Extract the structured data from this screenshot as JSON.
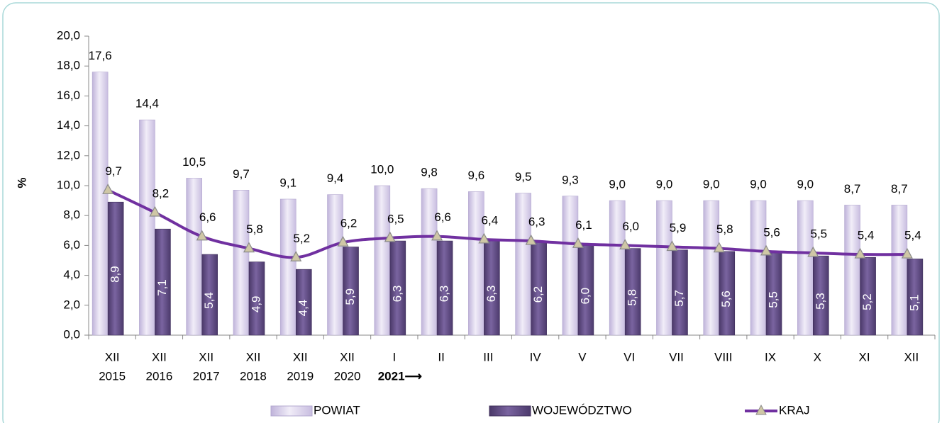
{
  "chart_data": {
    "type": "bar-line",
    "y_label": "%",
    "categories": [
      "XII",
      "XII",
      "XII",
      "XII",
      "XII",
      "XII",
      "I",
      "II",
      "III",
      "IV",
      "V",
      "VI",
      "VII",
      "VIII",
      "IX",
      "X",
      "XI",
      "XII"
    ],
    "category_years": [
      "2015",
      "2016",
      "2017",
      "2018",
      "2019",
      "2020",
      "2021⟶",
      null,
      null,
      null,
      null,
      null,
      null,
      null,
      null,
      null,
      null,
      null
    ],
    "ylim": [
      0,
      20
    ],
    "yticks": [
      {
        "value": 0,
        "label": "0,0"
      },
      {
        "value": 2,
        "label": "2,0"
      },
      {
        "value": 4,
        "label": "4,0"
      },
      {
        "value": 6,
        "label": "6,0"
      },
      {
        "value": 8,
        "label": "8,0"
      },
      {
        "value": 10,
        "label": "10,0"
      },
      {
        "value": 12,
        "label": "12,0"
      },
      {
        "value": 14,
        "label": "14,0"
      },
      {
        "value": 16,
        "label": "16,0"
      },
      {
        "value": 18,
        "label": "18,0"
      },
      {
        "value": 20,
        "label": "20,0"
      }
    ],
    "series": [
      {
        "name": "POWIAT",
        "type": "bar",
        "color": "#d9d2ea",
        "values": [
          17.6,
          14.4,
          10.5,
          9.7,
          9.1,
          9.4,
          10.0,
          9.8,
          9.6,
          9.5,
          9.3,
          9.0,
          9.0,
          9.0,
          9.0,
          9.0,
          8.7,
          8.7
        ],
        "value_labels": [
          "17,6",
          "14,4",
          "10,5",
          "9,7",
          "9,1",
          "9,4",
          "10,0",
          "9,8",
          "9,6",
          "9,5",
          "9,3",
          "9,0",
          "9,0",
          "9,0",
          "9,0",
          "9,0",
          "8,7",
          "8,7"
        ]
      },
      {
        "name": "WOJEWÓDZTWO",
        "type": "bar",
        "color": "#5f4a82",
        "values": [
          8.9,
          7.1,
          5.4,
          4.9,
          4.4,
          5.9,
          6.3,
          6.3,
          6.3,
          6.2,
          6.0,
          5.8,
          5.7,
          5.6,
          5.5,
          5.3,
          5.2,
          5.1
        ],
        "value_labels": [
          "8,9",
          "7,1",
          "5,4",
          "4,9",
          "4,4",
          "5,9",
          "6,3",
          "6,3",
          "6,3",
          "6,2",
          "6,0",
          "5,8",
          "5,7",
          "5,6",
          "5,5",
          "5,3",
          "5,2",
          "5,1"
        ]
      },
      {
        "name": "KRAJ",
        "type": "line",
        "color": "#7030a0",
        "values": [
          9.7,
          8.2,
          6.6,
          5.8,
          5.2,
          6.2,
          6.5,
          6.6,
          6.4,
          6.3,
          6.1,
          6.0,
          5.9,
          5.8,
          5.6,
          5.5,
          5.4,
          5.4
        ],
        "value_labels": [
          "9,7",
          "8,2",
          "6,6",
          "5,8",
          "5,2",
          "6,2",
          "6,5",
          "6,6",
          "6,4",
          "6,3",
          "6,1",
          "6,0",
          "5,9",
          "5,8",
          "5,6",
          "5,5",
          "5,4",
          "5,4"
        ]
      }
    ]
  }
}
